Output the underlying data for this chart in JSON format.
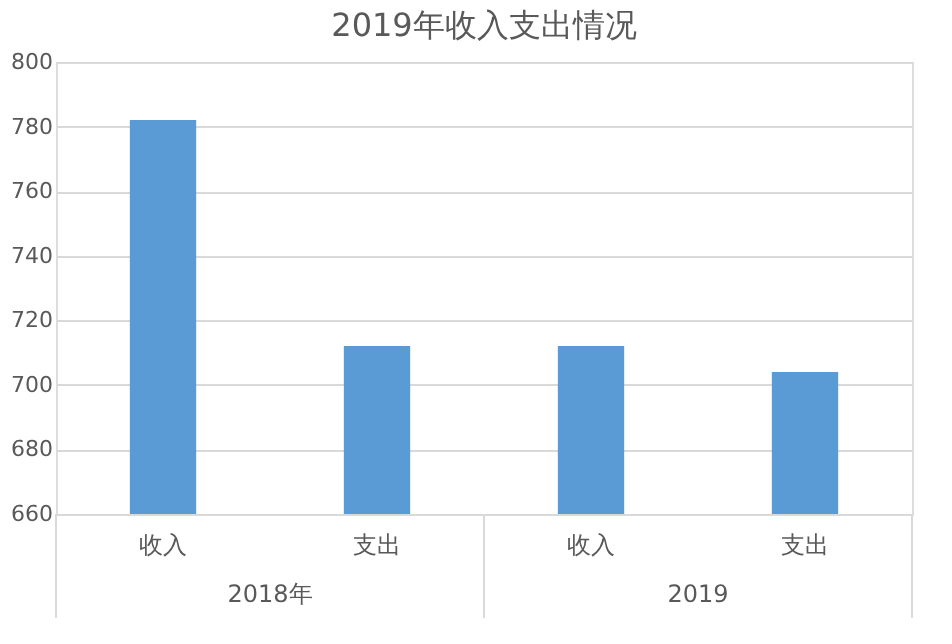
{
  "chart_data": {
    "type": "bar",
    "title": "2019年收入支出情况",
    "categories": [
      "收入",
      "支出",
      "收入",
      "支出"
    ],
    "values": [
      782,
      712,
      712,
      704
    ],
    "color": "#5b9bd5",
    "annotations": [
      "2018年",
      "2019"
    ],
    "ylim": [
      660,
      800
    ],
    "yticks": [
      660,
      680,
      700,
      720,
      740,
      760,
      780,
      800
    ],
    "grid": "y"
  }
}
